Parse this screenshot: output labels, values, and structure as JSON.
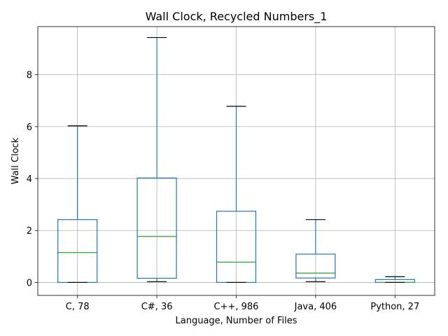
{
  "chart_data": {
    "type": "box",
    "title": "Wall Clock, Recycled Numbers_1",
    "xlabel": "Language, Number of Files",
    "ylabel": "Wall Clock",
    "ylim": [
      -0.5,
      9.85
    ],
    "yticks": [
      0,
      2,
      4,
      6,
      8
    ],
    "grid": true,
    "categories": [
      "C, 78",
      "C#, 36",
      "C++, 986",
      "Java, 406",
      "Python, 27"
    ],
    "boxes": [
      {
        "whislo": 0.0,
        "q1": 0.0,
        "med": 1.15,
        "q3": 2.42,
        "whishi": 6.03
      },
      {
        "whislo": 0.03,
        "q1": 0.16,
        "med": 1.77,
        "q3": 4.02,
        "whishi": 9.43
      },
      {
        "whislo": 0.0,
        "q1": 0.0,
        "med": 0.78,
        "q3": 2.74,
        "whishi": 6.78
      },
      {
        "whislo": 0.03,
        "q1": 0.17,
        "med": 0.36,
        "q3": 1.09,
        "whishi": 2.42
      },
      {
        "whislo": 0.0,
        "q1": 0.0,
        "med": 0.0,
        "q3": 0.11,
        "whishi": 0.22
      }
    ],
    "colors": {
      "box": "#1f77b4",
      "median": "#2ca02c",
      "cap": "#000000",
      "grid": "#b0b0b0"
    }
  }
}
